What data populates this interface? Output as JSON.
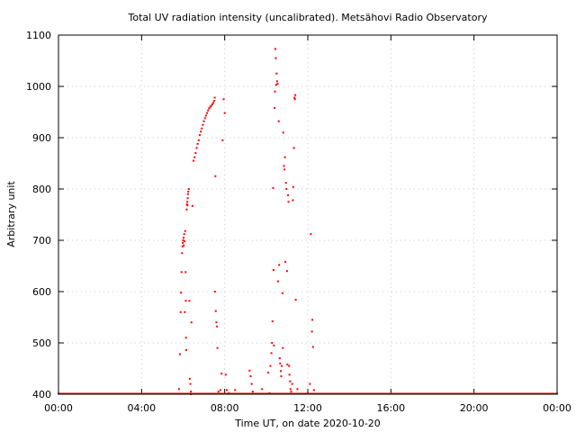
{
  "chart_data": {
    "type": "scatter",
    "title": "Total UV radiation intensity (uncalibrated). Metsähovi Radio Observatory",
    "xlabel": "Time UT, on date 2020-10-20",
    "ylabel": "Arbitrary unit",
    "x_unit": "hours UT",
    "xlim": [
      0,
      24
    ],
    "ylim": [
      400,
      1100
    ],
    "x_ticks": [
      {
        "value": 0,
        "label": "00:00"
      },
      {
        "value": 4,
        "label": "04:00"
      },
      {
        "value": 8,
        "label": "08:00"
      },
      {
        "value": 12,
        "label": "12:00"
      },
      {
        "value": 16,
        "label": "16:00"
      },
      {
        "value": 20,
        "label": "20:00"
      },
      {
        "value": 24,
        "label": "00:00"
      }
    ],
    "y_ticks": [
      400,
      500,
      600,
      700,
      800,
      900,
      1000,
      1100
    ],
    "grid": true,
    "grid_style": "dotted",
    "marker_color": "#ff0000",
    "baseline": {
      "x_start": 0,
      "x_end": 24,
      "step": 0.05,
      "y": 400
    },
    "points": [
      [
        5.8,
        410
      ],
      [
        5.85,
        478
      ],
      [
        5.88,
        560
      ],
      [
        5.9,
        598
      ],
      [
        5.92,
        638
      ],
      [
        5.95,
        675
      ],
      [
        5.97,
        688
      ],
      [
        5.98,
        695
      ],
      [
        6.0,
        700
      ],
      [
        6.02,
        705
      ],
      [
        6.03,
        690
      ],
      [
        6.05,
        712
      ],
      [
        6.07,
        698
      ],
      [
        6.08,
        560
      ],
      [
        6.1,
        718
      ],
      [
        6.12,
        638
      ],
      [
        6.13,
        582
      ],
      [
        6.14,
        510
      ],
      [
        6.15,
        486
      ],
      [
        6.17,
        760
      ],
      [
        6.18,
        770
      ],
      [
        6.2,
        775
      ],
      [
        6.21,
        768
      ],
      [
        6.22,
        782
      ],
      [
        6.23,
        790
      ],
      [
        6.25,
        795
      ],
      [
        6.27,
        800
      ],
      [
        6.3,
        582
      ],
      [
        6.32,
        430
      ],
      [
        6.35,
        420
      ],
      [
        6.37,
        405
      ],
      [
        6.38,
        400
      ],
      [
        6.4,
        540
      ],
      [
        6.45,
        767
      ],
      [
        6.5,
        855
      ],
      [
        6.55,
        862
      ],
      [
        6.6,
        870
      ],
      [
        6.65,
        880
      ],
      [
        6.7,
        888
      ],
      [
        6.75,
        895
      ],
      [
        6.8,
        905
      ],
      [
        6.85,
        912
      ],
      [
        6.9,
        918
      ],
      [
        6.95,
        925
      ],
      [
        7.0,
        932
      ],
      [
        7.05,
        938
      ],
      [
        7.1,
        943
      ],
      [
        7.15,
        948
      ],
      [
        7.2,
        953
      ],
      [
        7.25,
        957
      ],
      [
        7.3,
        960
      ],
      [
        7.35,
        962
      ],
      [
        7.4,
        965
      ],
      [
        7.45,
        968
      ],
      [
        7.5,
        972
      ],
      [
        7.52,
        978
      ],
      [
        7.53,
        600
      ],
      [
        7.55,
        825
      ],
      [
        7.57,
        562
      ],
      [
        7.6,
        540
      ],
      [
        7.63,
        532
      ],
      [
        7.65,
        490
      ],
      [
        7.7,
        405
      ],
      [
        7.8,
        408
      ],
      [
        7.85,
        440
      ],
      [
        7.9,
        895
      ],
      [
        7.95,
        975
      ],
      [
        8.0,
        948
      ],
      [
        8.05,
        438
      ],
      [
        8.1,
        408
      ],
      [
        8.2,
        402
      ],
      [
        8.5,
        408
      ],
      [
        9.2,
        446
      ],
      [
        9.25,
        435
      ],
      [
        9.3,
        420
      ],
      [
        9.35,
        405
      ],
      [
        9.8,
        410
      ],
      [
        10.1,
        442
      ],
      [
        10.15,
        402
      ],
      [
        10.2,
        455
      ],
      [
        10.25,
        480
      ],
      [
        10.28,
        500
      ],
      [
        10.3,
        542
      ],
      [
        10.33,
        802
      ],
      [
        10.35,
        642
      ],
      [
        10.37,
        495
      ],
      [
        10.4,
        958
      ],
      [
        10.42,
        990
      ],
      [
        10.44,
        1073
      ],
      [
        10.46,
        1055
      ],
      [
        10.48,
        1003
      ],
      [
        10.5,
        1025
      ],
      [
        10.52,
        1010
      ],
      [
        10.55,
        1005
      ],
      [
        10.57,
        620
      ],
      [
        10.6,
        932
      ],
      [
        10.62,
        652
      ],
      [
        10.65,
        470
      ],
      [
        10.67,
        460
      ],
      [
        10.7,
        445
      ],
      [
        10.72,
        435
      ],
      [
        10.75,
        455
      ],
      [
        10.78,
        597
      ],
      [
        10.8,
        490
      ],
      [
        10.82,
        910
      ],
      [
        10.85,
        845
      ],
      [
        10.88,
        838
      ],
      [
        10.9,
        862
      ],
      [
        10.92,
        658
      ],
      [
        10.95,
        812
      ],
      [
        10.97,
        800
      ],
      [
        11.0,
        640
      ],
      [
        11.02,
        458
      ],
      [
        11.05,
        788
      ],
      [
        11.07,
        775
      ],
      [
        11.1,
        455
      ],
      [
        11.12,
        438
      ],
      [
        11.15,
        425
      ],
      [
        11.17,
        410
      ],
      [
        11.2,
        405
      ],
      [
        11.25,
        420
      ],
      [
        11.28,
        778
      ],
      [
        11.3,
        804
      ],
      [
        11.33,
        880
      ],
      [
        11.36,
        978
      ],
      [
        11.38,
        975
      ],
      [
        11.4,
        983
      ],
      [
        11.42,
        584
      ],
      [
        11.5,
        410
      ],
      [
        12.0,
        402
      ],
      [
        12.1,
        420
      ],
      [
        12.15,
        712
      ],
      [
        12.2,
        522
      ],
      [
        12.22,
        545
      ],
      [
        12.25,
        492
      ],
      [
        12.3,
        408
      ]
    ]
  }
}
